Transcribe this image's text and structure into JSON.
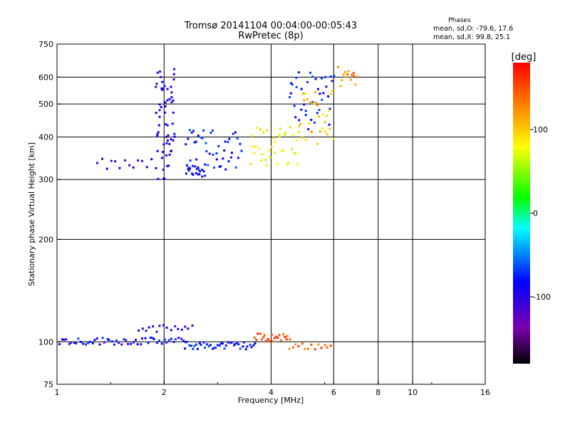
{
  "chart_data": {
    "type": "scatter",
    "title": "Tromsø 20141104 00:04:00-00:05:43",
    "subtitle": "RwPretec (8p)",
    "xlabel": "Frequency [MHz]",
    "ylabel": "Stationary phase Virtual Height [km]",
    "x_scale": "log2",
    "y_scale": "log",
    "xlim": [
      1,
      16
    ],
    "ylim": [
      75,
      750
    ],
    "x_ticks": [
      1,
      2,
      4,
      6,
      8,
      10,
      16
    ],
    "x_tick_labels": [
      "1",
      "2",
      "4",
      "6",
      "8",
      "10",
      "16"
    ],
    "y_ticks": [
      75,
      100,
      200,
      300,
      400,
      500,
      600,
      750
    ],
    "y_tick_labels": [
      "75",
      "100",
      "200",
      "300",
      "400",
      "500",
      "600",
      "750"
    ],
    "x_gridlines": [
      2,
      4,
      6,
      8,
      10
    ],
    "y_gridlines": [
      100,
      200,
      300,
      400,
      500,
      600
    ],
    "stats": {
      "heading": "Phases",
      "o_line": "mean, sd,O: -79.6, 17.6",
      "x_line": "mean, sd,X:  99.8, 25.1"
    },
    "colorbar": {
      "label": "[deg]",
      "range": [
        -180,
        180
      ],
      "ticks": [
        100,
        0,
        -100
      ],
      "tick_labels": [
        "100",
        "0",
        "-100"
      ]
    },
    "series": [
      {
        "traces": [
          {
            "x": [
              1.3,
              1.9
            ],
            "y": [
              318,
              345
            ],
            "phase": -105,
            "n": 14
          },
          {
            "x": [
              1.9,
              2.15
            ],
            "y": [
              300,
              645
            ],
            "phase": -95,
            "n": 60
          },
          {
            "x": [
              2.3,
              2.6
            ],
            "y": [
              305,
              330
            ],
            "phase": -90,
            "n": 20
          },
          {
            "x": [
              2.3,
              3.3
            ],
            "y": [
              320,
              420
            ],
            "phase": -75,
            "n": 45
          },
          {
            "x": [
              3.5,
              4.8
            ],
            "y": [
              330,
              430
            ],
            "phase": 80,
            "n": 38
          },
          {
            "x": [
              4.5,
              6.0
            ],
            "y": [
              420,
              620
            ],
            "phase": -80,
            "n": 40
          },
          {
            "x": [
              4.8,
              6.0
            ],
            "y": [
              380,
              560
            ],
            "phase": 100,
            "n": 30
          },
          {
            "x": [
              6.2,
              7.0
            ],
            "y": [
              560,
              650
            ],
            "phase": 130,
            "n": 14
          },
          {
            "x": [
              1.0,
              2.3
            ],
            "y": [
              98,
              103
            ],
            "phase": -85,
            "n": 55
          },
          {
            "x": [
              2.3,
              3.6
            ],
            "y": [
              95,
              100
            ],
            "phase": -75,
            "n": 40
          },
          {
            "x": [
              3.6,
              4.5
            ],
            "y": [
              100,
              106
            ],
            "phase": 150,
            "n": 22
          },
          {
            "x": [
              4.5,
              5.9
            ],
            "y": [
              95,
              99
            ],
            "phase": 140,
            "n": 14
          },
          {
            "x": [
              1.7,
              2.4
            ],
            "y": [
              107,
              112
            ],
            "phase": -100,
            "n": 16
          }
        ]
      }
    ]
  }
}
